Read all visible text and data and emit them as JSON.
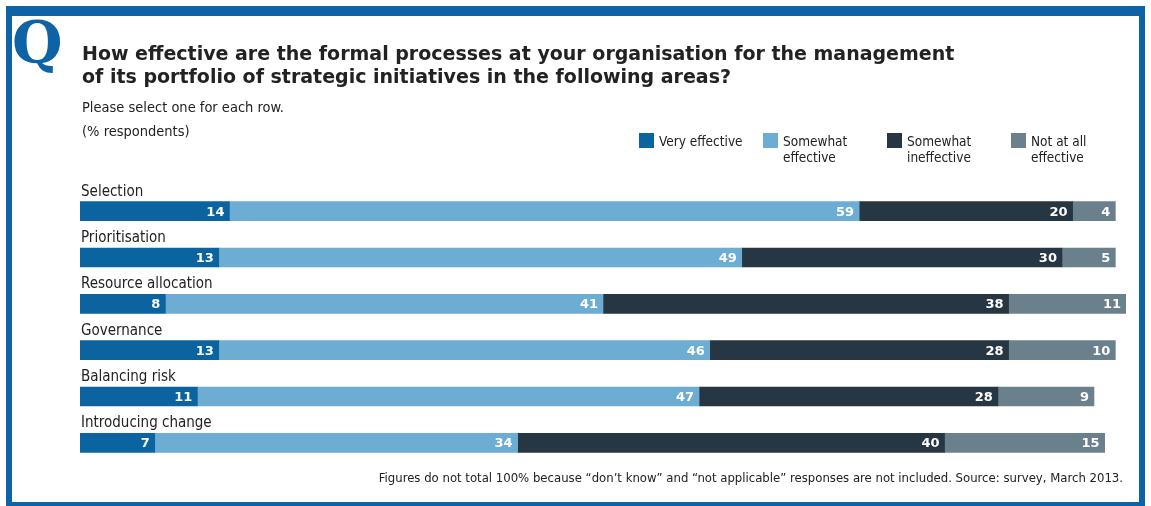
{
  "chart_data": {
    "type": "bar",
    "orientation": "horizontal",
    "stacked": true,
    "data_labels": true,
    "legend": "top right",
    "title": "How effective are the formal processes at your organisation for the management of its portfolio of strategic initiatives in the following areas?",
    "subtitle": "Please select one for each row.\n(% respondents)",
    "categories": [
      "Selection",
      "Prioritisation",
      "Resource allocation",
      "Governance",
      "Balancing risk",
      "Introducing change"
    ],
    "series": [
      {
        "name": "Very effective",
        "color": "#0b64a0",
        "values": [
          14,
          13,
          8,
          13,
          11,
          7
        ]
      },
      {
        "name": "Somewhat effective",
        "color": "#6eadd3",
        "values": [
          59,
          49,
          41,
          46,
          47,
          34
        ]
      },
      {
        "name": "Somewhat ineffective",
        "color": "#263642",
        "values": [
          20,
          30,
          38,
          28,
          28,
          40
        ]
      },
      {
        "name": "Not at all effective",
        "color": "#6a808c",
        "values": [
          4,
          5,
          11,
          10,
          9,
          15
        ]
      }
    ],
    "annotations": [
      "Q",
      "Figures do not total 100% because “don’t know” and “not applicable” responses are not included. Source: survey, March 2013."
    ]
  }
}
